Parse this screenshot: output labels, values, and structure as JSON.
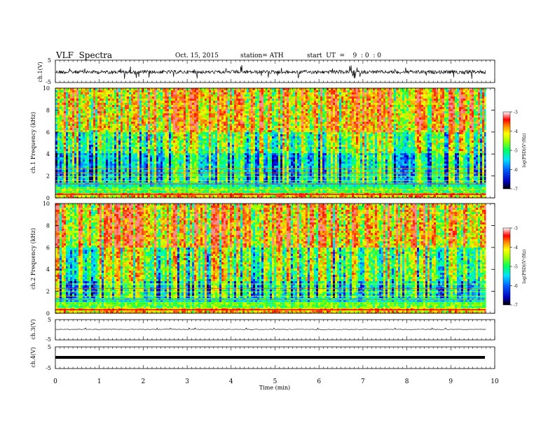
{
  "header": {
    "title": "VLF  Spectra",
    "date": "Oct. 15, 2015",
    "station": "station= ATH",
    "start": "start  UT  =    9  : 0  : 0"
  },
  "chart_data": [
    {
      "type": "line",
      "name": "ch1-waveform",
      "ylabel": "ch.1(V)",
      "ylim": [
        -5,
        5
      ],
      "yticks": [
        "5",
        "-5"
      ],
      "description_level": "noisy signal around 0 V with spikes"
    },
    {
      "type": "heatmap",
      "name": "ch1-spectrogram",
      "ylabel": "ch.1 Frequency  (kHz)",
      "ylim": [
        0,
        10
      ],
      "yticks": [
        "0",
        "2",
        "4",
        "6",
        "8",
        "10"
      ],
      "colorbar": {
        "label": "log(PSD)(V²/Hz)",
        "range": [
          -7,
          -3
        ],
        "ticks": [
          "-3",
          "-4",
          "-5",
          "-6",
          "-7"
        ]
      }
    },
    {
      "type": "heatmap",
      "name": "ch2-spectrogram",
      "ylabel": "ch.2 Frequency  (kHz)",
      "ylim": [
        0,
        10
      ],
      "yticks": [
        "0",
        "2",
        "4",
        "6",
        "8",
        "10"
      ],
      "colorbar": {
        "label": "log(PSD)(V²/Hz)",
        "range": [
          -7,
          -3
        ],
        "ticks": [
          "-3",
          "-4",
          "-5",
          "-6",
          "-7"
        ]
      }
    },
    {
      "type": "line",
      "name": "ch3-waveform",
      "ylabel": "ch.3(V)",
      "ylim": [
        -5,
        5
      ],
      "yticks": [
        "5",
        "-5"
      ]
    },
    {
      "type": "line",
      "name": "ch4-waveform",
      "ylabel": "ch.4(V)",
      "ylim": [
        -5,
        5
      ],
      "yticks": [
        "5",
        "-5"
      ]
    }
  ],
  "x_axis": {
    "label": "Time  (min)",
    "range": [
      0,
      10
    ],
    "ticks": [
      "0",
      "1",
      "2",
      "3",
      "4",
      "5",
      "6",
      "7",
      "8",
      "9",
      "10"
    ],
    "data_end": 9.8
  },
  "colors": {
    "scale": [
      "#000080",
      "#0000ff",
      "#00a0ff",
      "#00ffff",
      "#00ff80",
      "#80ff00",
      "#ffff00",
      "#ff8000",
      "#ff0000",
      "#ff8080",
      "#ffffff"
    ]
  }
}
